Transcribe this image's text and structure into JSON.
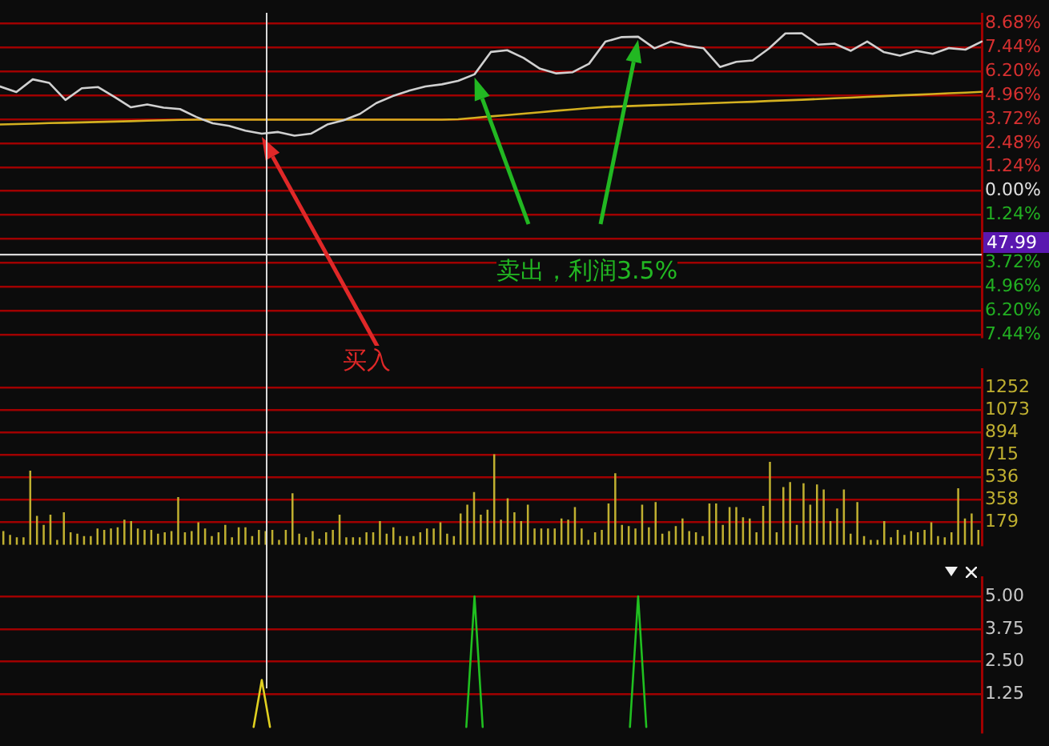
{
  "chart_data": [
    {
      "type": "line",
      "categories": [
        null,
        null,
        null,
        null,
        null,
        null,
        null,
        null,
        null,
        null,
        null,
        null,
        null,
        null,
        null,
        null,
        null,
        null,
        null,
        null,
        null,
        null,
        null,
        null,
        null,
        null,
        null,
        null,
        null,
        null,
        null,
        null,
        null,
        null,
        null,
        null,
        null,
        null,
        null,
        null,
        null,
        null,
        null,
        null,
        null,
        null,
        null,
        null,
        null,
        null,
        null,
        null,
        null,
        null,
        null,
        null,
        null,
        null,
        null,
        null,
        null
      ],
      "ylim": [
        -7.56,
        9.19
      ],
      "yticks": [
        {
          "value": 8.68,
          "label": "8.68%"
        },
        {
          "value": 7.44,
          "label": "7.44%"
        },
        {
          "value": 6.2,
          "label": "6.20%"
        },
        {
          "value": 4.96,
          "label": "4.96%"
        },
        {
          "value": 3.72,
          "label": "3.72%"
        },
        {
          "value": 2.48,
          "label": "2.48%"
        },
        {
          "value": 1.24,
          "label": "1.24%"
        },
        {
          "value": 0,
          "label": "0.00%"
        },
        {
          "value": -1.24,
          "label": "1.24%"
        },
        {
          "value": -2.48,
          "label": null
        },
        {
          "value": -3.72,
          "label": "3.72%"
        },
        {
          "value": -4.96,
          "label": "4.96%"
        },
        {
          "value": -6.2,
          "label": "6.20%"
        },
        {
          "value": -7.44,
          "label": "7.44%"
        }
      ],
      "grid": "y",
      "tick_labels": "y",
      "legend": false,
      "marker": "none",
      "series": [
        {
          "color": "#d0d0d0",
          "values": [
            5.42,
            5.13,
            5.79,
            5.61,
            4.72,
            5.33,
            5.39,
            4.88,
            4.34,
            4.49,
            4.32,
            4.25,
            3.84,
            3.51,
            3.38,
            3.13,
            2.97,
            3.06,
            2.87,
            2.97,
            3.45,
            3.67,
            4.0,
            4.56,
            4.92,
            5.2,
            5.42,
            5.53,
            5.71,
            6.05,
            7.21,
            7.3,
            6.9,
            6.34,
            6.1,
            6.16,
            6.6,
            7.75,
            7.98,
            8.0,
            7.4,
            7.75,
            7.53,
            7.4,
            6.43,
            6.7,
            6.77,
            7.39,
            8.17,
            8.18,
            7.59,
            7.64,
            7.27,
            7.75,
            7.21,
            7.02,
            7.27,
            7.11,
            7.41,
            7.33,
            7.75
          ]
        },
        {
          "color": "#d4b020",
          "values": [
            3.45,
            3.47,
            3.49,
            3.52,
            3.54,
            3.56,
            3.58,
            3.6,
            3.62,
            3.65,
            3.67,
            3.69,
            3.7,
            3.7,
            3.7,
            3.7,
            3.7,
            3.7,
            3.7,
            3.7,
            3.7,
            3.7,
            3.7,
            3.7,
            3.7,
            3.7,
            3.7,
            3.7,
            3.72,
            3.79,
            3.87,
            3.94,
            4.01,
            4.08,
            4.16,
            4.23,
            4.3,
            4.36,
            4.39,
            4.42,
            4.45,
            4.48,
            4.51,
            4.54,
            4.57,
            4.6,
            4.63,
            4.67,
            4.7,
            4.73,
            4.77,
            4.81,
            4.84,
            4.88,
            4.92,
            4.96,
            4.99,
            5.03,
            5.07,
            5.1,
            5.14
          ]
        }
      ],
      "ref_lines": [
        {
          "axis": "y",
          "value": -3.3
        }
      ],
      "annotations": [
        "买入",
        "卖出，利润3.5%",
        "47.99"
      ]
    },
    {
      "type": "bar",
      "tick_labels": "y",
      "grid": "y",
      "legend": false,
      "categories": [
        null,
        null,
        null,
        null,
        null,
        null,
        null,
        null,
        null,
        null,
        null,
        null,
        null,
        null,
        null,
        null,
        null,
        null,
        null,
        null,
        null,
        null,
        null,
        null,
        null,
        null,
        null,
        null,
        null,
        null,
        null,
        null,
        null,
        null,
        null,
        null,
        null,
        null,
        null,
        null,
        null,
        null,
        null,
        null,
        null,
        null,
        null,
        null,
        null,
        null,
        null,
        null,
        null,
        null,
        null,
        null,
        null,
        null,
        null,
        null,
        null,
        null,
        null,
        null,
        null,
        null,
        null,
        null,
        null,
        null,
        null,
        null,
        null,
        null,
        null,
        null,
        null,
        null,
        null,
        null,
        null,
        null,
        null,
        null,
        null,
        null,
        null,
        null,
        null,
        null,
        null,
        null,
        null,
        null,
        null,
        null,
        null,
        null,
        null,
        null,
        null,
        null,
        null,
        null,
        null,
        null,
        null,
        null,
        null,
        null,
        null,
        null,
        null,
        null,
        null,
        null,
        null,
        null,
        null,
        null,
        null,
        null,
        null,
        null,
        null,
        null,
        null,
        null,
        null,
        null,
        null,
        null,
        null,
        null,
        null,
        null,
        null,
        null,
        null,
        null,
        null,
        null,
        null,
        null,
        null,
        null
      ],
      "ylim": [
        0,
        1396
      ],
      "yticks": [
        179,
        358,
        536,
        715,
        894,
        1073,
        1252
      ],
      "series": [
        {
          "color": "#c0b030",
          "values": [
            110,
            80,
            60,
            60,
            590,
            230,
            160,
            240,
            40,
            260,
            100,
            90,
            70,
            70,
            130,
            120,
            130,
            140,
            200,
            190,
            130,
            120,
            120,
            90,
            100,
            110,
            380,
            100,
            110,
            180,
            130,
            70,
            100,
            160,
            60,
            140,
            140,
            70,
            120,
            110,
            120,
            40,
            120,
            410,
            90,
            60,
            110,
            50,
            100,
            120,
            240,
            60,
            60,
            60,
            100,
            100,
            190,
            90,
            140,
            70,
            70,
            70,
            100,
            130,
            130,
            180,
            90,
            70,
            250,
            320,
            420,
            240,
            280,
            720,
            200,
            370,
            260,
            190,
            320,
            130,
            130,
            130,
            130,
            210,
            200,
            300,
            130,
            40,
            100,
            120,
            330,
            570,
            160,
            150,
            130,
            320,
            140,
            340,
            90,
            110,
            150,
            210,
            110,
            100,
            70,
            330,
            330,
            160,
            300,
            300,
            220,
            210,
            100,
            310,
            660,
            100,
            460,
            500,
            160,
            490,
            320,
            480,
            440,
            190,
            290,
            440,
            90,
            340,
            70,
            40,
            40,
            190,
            60,
            120,
            80,
            110,
            100,
            120,
            180,
            70,
            60,
            100,
            450,
            210,
            250,
            120
          ]
        }
      ]
    },
    {
      "type": "line",
      "categories": [
        null,
        null,
        null,
        null,
        null,
        null,
        null,
        null,
        null,
        null,
        null,
        null,
        null,
        null,
        null,
        null,
        null,
        null,
        null,
        null,
        null,
        null,
        null,
        null,
        null,
        null,
        null,
        null,
        null,
        null,
        null,
        null,
        null,
        null,
        null,
        null,
        null,
        null,
        null,
        null,
        null,
        null,
        null,
        null,
        null,
        null,
        null,
        null,
        null,
        null,
        null,
        null,
        null,
        null,
        null,
        null,
        null,
        null,
        null,
        null,
        null,
        null,
        null,
        null,
        null,
        null,
        null,
        null,
        null,
        null,
        null,
        null,
        null,
        null,
        null,
        null,
        null,
        null,
        null,
        null,
        null,
        null,
        null,
        null,
        null,
        null,
        null,
        null,
        null,
        null,
        null,
        null,
        null,
        null,
        null,
        null,
        null,
        null,
        null,
        null,
        null,
        null,
        null,
        null,
        null,
        null,
        null,
        null,
        null,
        null,
        null,
        null,
        null,
        null,
        null,
        null,
        null,
        null,
        null,
        null,
        null
      ],
      "ylim": [
        -0.2,
        5.73
      ],
      "yticks": [
        {
          "value": 1.25,
          "label": "1.25"
        },
        {
          "value": 2.5,
          "label": "2.50"
        },
        {
          "value": 3.75,
          "label": "3.75"
        },
        {
          "value": 5,
          "label": "5.00"
        }
      ],
      "tick_labels": "y",
      "grid": "y",
      "legend": false,
      "marker": "none",
      "series": [
        {
          "color": "#e0d020",
          "values": [
            null,
            null,
            null,
            null,
            null,
            null,
            null,
            null,
            null,
            null,
            null,
            null,
            null,
            null,
            null,
            null,
            null,
            null,
            null,
            null,
            null,
            null,
            null,
            null,
            null,
            null,
            null,
            null,
            null,
            null,
            null,
            0,
            1.8,
            0,
            null,
            null,
            null,
            null,
            null,
            null,
            null,
            null,
            null,
            null,
            null,
            null,
            null,
            null,
            null,
            null,
            null,
            null,
            null,
            null,
            null,
            null,
            null,
            null,
            null,
            null,
            null,
            null,
            null,
            null,
            null,
            null,
            null,
            null,
            null,
            null,
            null,
            null,
            null,
            null,
            null,
            null,
            null,
            null,
            null,
            null,
            null,
            null,
            null,
            null,
            null,
            null,
            null,
            null,
            null,
            null,
            null,
            null,
            null,
            null,
            null,
            null,
            null,
            null,
            null,
            null,
            null,
            null,
            null,
            null,
            null,
            null,
            null,
            null,
            null,
            null,
            null,
            null,
            null,
            null,
            null,
            null,
            null,
            null,
            null,
            null,
            null
          ]
        },
        {
          "color": "#20c020",
          "values": [
            null,
            null,
            null,
            null,
            null,
            null,
            null,
            null,
            null,
            null,
            null,
            null,
            null,
            null,
            null,
            null,
            null,
            null,
            null,
            null,
            null,
            null,
            null,
            null,
            null,
            null,
            null,
            null,
            null,
            null,
            null,
            null,
            null,
            null,
            null,
            null,
            null,
            null,
            null,
            null,
            null,
            null,
            null,
            null,
            null,
            null,
            null,
            null,
            null,
            null,
            null,
            null,
            null,
            null,
            null,
            null,
            null,
            0,
            5,
            0,
            null,
            null,
            null,
            null,
            null,
            null,
            null,
            null,
            null,
            null,
            null,
            null,
            null,
            null,
            null,
            null,
            null,
            0,
            5,
            0,
            null,
            null,
            null,
            null,
            null,
            null,
            null,
            null,
            null,
            null,
            null,
            null,
            null,
            null,
            null,
            null,
            null,
            null,
            null,
            null,
            null,
            null,
            null,
            null,
            null,
            null,
            null,
            null,
            null,
            null,
            null,
            null,
            null,
            null,
            null,
            null,
            null,
            null,
            null,
            null,
            null
          ]
        }
      ]
    }
  ]
}
